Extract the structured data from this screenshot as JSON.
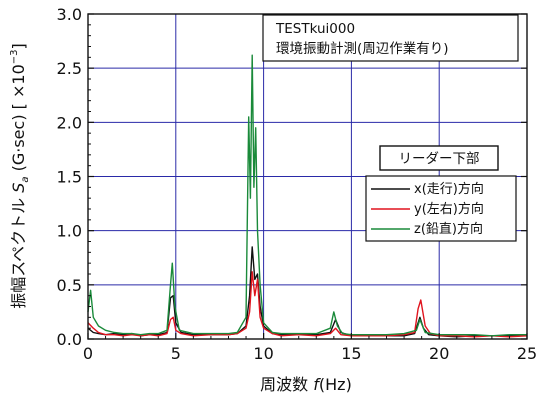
{
  "chart_data": {
    "type": "line",
    "annotation": {
      "line1": "TESTkui000",
      "line2": "環境振動計測(周辺作業有り)"
    },
    "legend_title": "リーダー下部",
    "legend_position": "right",
    "xlabel": {
      "prefix": "周波数",
      "symbol": "f",
      "unit": "(Hz)"
    },
    "ylabel": {
      "prefix": "振幅スペクトル",
      "symbol": "S",
      "subscript": "a",
      "unit": "(G·sec) [ ×10",
      "exponent": "−3",
      "close": "]"
    },
    "xlim": [
      0,
      25
    ],
    "ylim": [
      0,
      3.0
    ],
    "x_ticks": [
      "0",
      "5",
      "10",
      "15",
      "20",
      "25"
    ],
    "y_ticks": [
      "0.0",
      "0.5",
      "1.0",
      "1.5",
      "2.0",
      "2.5",
      "3.0"
    ],
    "grid": true,
    "series": [
      {
        "name": "x(走行)方向",
        "color": "#111111",
        "x": [
          0,
          0.3,
          0.6,
          1,
          1.5,
          2,
          2.5,
          3,
          3.5,
          4,
          4.5,
          4.7,
          4.85,
          5.0,
          5.3,
          6,
          7,
          8,
          8.5,
          9.0,
          9.2,
          9.35,
          9.5,
          9.65,
          9.8,
          10.0,
          10.5,
          11,
          12,
          13,
          13.8,
          14.1,
          14.4,
          15,
          16,
          17,
          18,
          18.6,
          18.9,
          19.1,
          19.4,
          20,
          21,
          22,
          23,
          24,
          25
        ],
        "y": [
          0.1,
          0.06,
          0.05,
          0.04,
          0.05,
          0.04,
          0.05,
          0.03,
          0.04,
          0.04,
          0.06,
          0.38,
          0.4,
          0.15,
          0.06,
          0.04,
          0.04,
          0.04,
          0.05,
          0.12,
          0.4,
          0.85,
          0.55,
          0.6,
          0.3,
          0.12,
          0.05,
          0.04,
          0.04,
          0.04,
          0.06,
          0.18,
          0.06,
          0.03,
          0.03,
          0.03,
          0.03,
          0.05,
          0.2,
          0.1,
          0.04,
          0.03,
          0.02,
          0.03,
          0.03,
          0.03,
          0.03
        ]
      },
      {
        "name": "y(左右)方向",
        "color": "#e0141e",
        "x": [
          0,
          0.3,
          0.6,
          1,
          1.5,
          2,
          2.5,
          3,
          3.5,
          4,
          4.5,
          4.7,
          4.85,
          5.0,
          5.3,
          6,
          7,
          8,
          8.5,
          9.0,
          9.2,
          9.35,
          9.5,
          9.65,
          9.8,
          10.0,
          10.5,
          11,
          12,
          13,
          13.8,
          14.1,
          14.4,
          15,
          16,
          17,
          18,
          18.6,
          18.8,
          18.95,
          19.2,
          19.5,
          20,
          21,
          22,
          23,
          24,
          25
        ],
        "y": [
          0.15,
          0.1,
          0.06,
          0.04,
          0.04,
          0.03,
          0.04,
          0.03,
          0.04,
          0.03,
          0.05,
          0.18,
          0.2,
          0.08,
          0.05,
          0.03,
          0.04,
          0.04,
          0.05,
          0.1,
          0.25,
          0.62,
          0.4,
          0.55,
          0.2,
          0.1,
          0.05,
          0.03,
          0.04,
          0.03,
          0.05,
          0.1,
          0.04,
          0.03,
          0.03,
          0.03,
          0.04,
          0.06,
          0.28,
          0.36,
          0.12,
          0.05,
          0.03,
          0.03,
          0.02,
          0.03,
          0.02,
          0.03
        ]
      },
      {
        "name": "z(鉛直)方向",
        "color": "#1a8a3a",
        "x": [
          0,
          0.15,
          0.3,
          0.6,
          1,
          1.5,
          2,
          2.5,
          3,
          3.5,
          4,
          4.5,
          4.7,
          4.8,
          4.95,
          5.2,
          6,
          7,
          8,
          8.5,
          9.0,
          9.15,
          9.25,
          9.35,
          9.45,
          9.55,
          9.65,
          9.8,
          10.0,
          10.5,
          11,
          12,
          13,
          13.8,
          14.0,
          14.2,
          14.5,
          15,
          16,
          17,
          18,
          18.7,
          18.9,
          19.2,
          20,
          21,
          22,
          23,
          24,
          25
        ],
        "y": [
          0.25,
          0.45,
          0.2,
          0.12,
          0.08,
          0.06,
          0.05,
          0.05,
          0.04,
          0.05,
          0.05,
          0.08,
          0.5,
          0.7,
          0.3,
          0.08,
          0.05,
          0.05,
          0.05,
          0.06,
          0.2,
          2.05,
          1.3,
          2.62,
          1.4,
          1.95,
          1.0,
          0.5,
          0.15,
          0.06,
          0.05,
          0.05,
          0.05,
          0.1,
          0.25,
          0.12,
          0.05,
          0.04,
          0.04,
          0.04,
          0.05,
          0.08,
          0.18,
          0.06,
          0.04,
          0.04,
          0.04,
          0.03,
          0.04,
          0.04
        ]
      }
    ]
  }
}
